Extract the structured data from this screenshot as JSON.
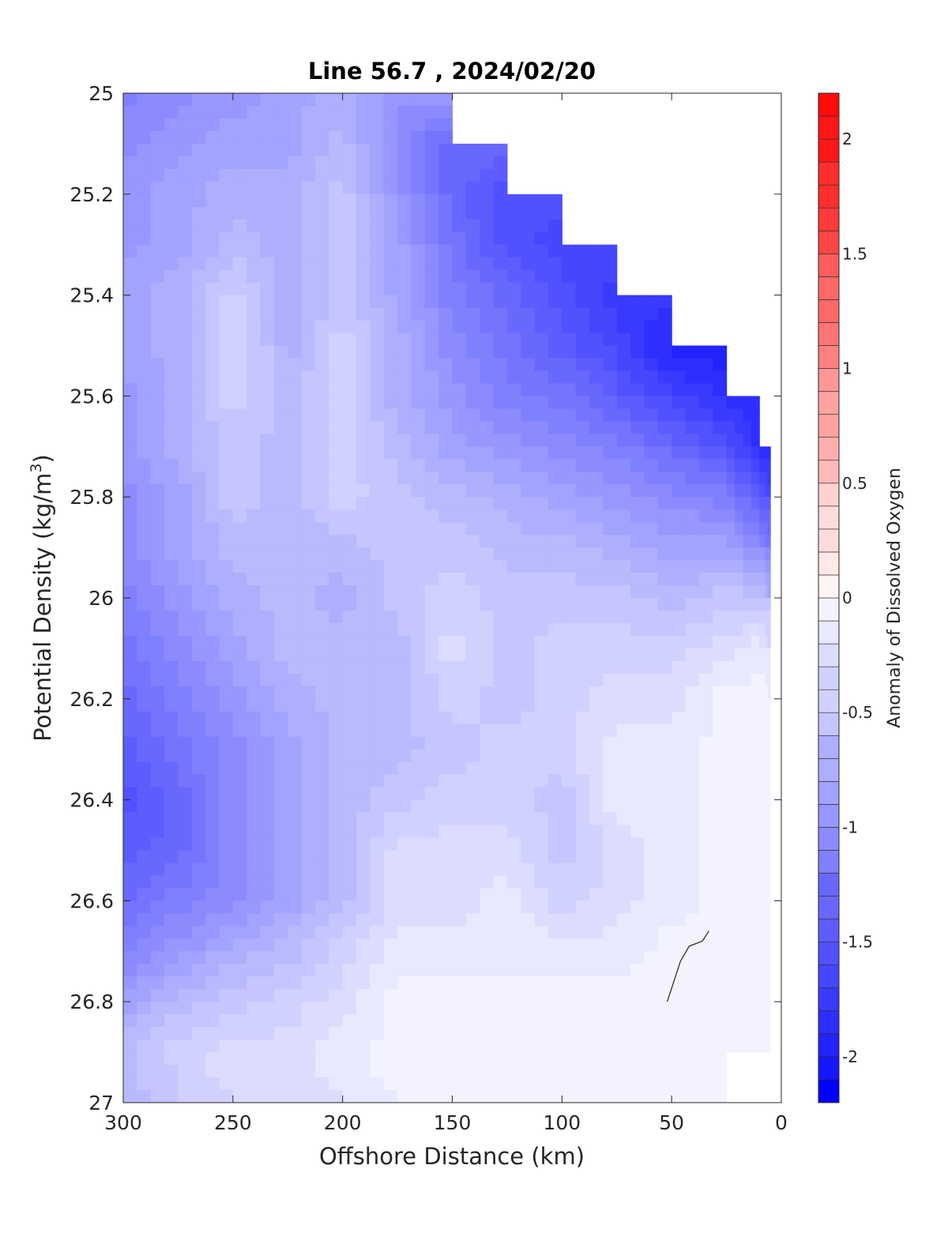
{
  "chart_data": {
    "type": "heatmap",
    "title": "Line 56.7 , 2024/02/20",
    "xlabel": "Offshore Distance (km)",
    "ylabel_parts": [
      "Potential Density (kg/m",
      "3",
      ")"
    ],
    "x_ticks": [
      300,
      250,
      200,
      150,
      100,
      50,
      0
    ],
    "x_tick_labels": [
      "300",
      "250",
      "200",
      "150",
      "100",
      "50",
      "0"
    ],
    "xlim": [
      300,
      0
    ],
    "y_ticks": [
      25,
      25.2,
      25.4,
      25.6,
      25.8,
      26,
      26.2,
      26.4,
      26.6,
      26.8,
      27
    ],
    "y_tick_labels": [
      "25",
      "25.2",
      "25.4",
      "25.6",
      "25.8",
      "26",
      "26.2",
      "26.4",
      "26.6",
      "26.8",
      "27"
    ],
    "ylim": [
      25,
      27
    ],
    "y_reversed": true,
    "colorbar": {
      "label": "Anomaly of Dissolved Oxygen",
      "range": [
        -2.2,
        2.2
      ],
      "step": 0.1,
      "ticks": [
        -2,
        -1.5,
        -1,
        -0.5,
        0,
        0.5,
        1,
        1.5,
        2
      ],
      "tick_labels": [
        "-2",
        "-1.5",
        "-1",
        "-0.5",
        "0",
        "0.5",
        "1",
        "1.5",
        "2"
      ],
      "negative_color": "#0000ff",
      "positive_color": "#ff0000",
      "neutral_color": "#ffffff"
    },
    "grid_x": [
      300,
      275,
      250,
      225,
      200,
      175,
      150,
      125,
      100,
      75,
      50,
      25,
      10
    ],
    "grid_y": [
      25.0,
      25.1,
      25.2,
      25.3,
      25.4,
      25.5,
      25.6,
      25.7,
      25.8,
      25.9,
      26.0,
      26.1,
      26.2,
      26.3,
      26.4,
      26.5,
      26.6,
      26.7,
      26.8,
      26.9
    ],
    "values": [
      [
        -1.1,
        -1.0,
        -0.9,
        -0.8,
        -0.7,
        -0.9,
        null,
        null,
        null,
        null,
        null,
        null,
        null
      ],
      [
        -1.0,
        -0.9,
        -0.8,
        -0.8,
        -0.6,
        -1.0,
        -1.3,
        null,
        null,
        null,
        null,
        null,
        null
      ],
      [
        -0.9,
        -0.8,
        -0.7,
        -0.7,
        -0.5,
        -0.9,
        -1.3,
        -1.5,
        null,
        null,
        null,
        null,
        null
      ],
      [
        -0.9,
        -0.8,
        -0.6,
        -0.7,
        -0.5,
        -0.8,
        -1.2,
        -1.5,
        -1.6,
        null,
        null,
        null,
        null
      ],
      [
        -0.8,
        -0.7,
        -0.4,
        -0.7,
        -0.5,
        -0.8,
        -1.1,
        -1.3,
        -1.5,
        -1.7,
        null,
        null,
        null
      ],
      [
        -0.8,
        -0.7,
        -0.3,
        -0.7,
        -0.4,
        -0.7,
        -1.0,
        -1.2,
        -1.4,
        -1.6,
        -1.9,
        null,
        null
      ],
      [
        -0.9,
        -0.7,
        -0.4,
        -0.6,
        -0.4,
        -0.7,
        -0.9,
        -1.1,
        -1.2,
        -1.4,
        -1.6,
        -1.8,
        null
      ],
      [
        -0.9,
        -0.7,
        -0.5,
        -0.6,
        -0.4,
        -0.6,
        -0.8,
        -0.9,
        -1.0,
        -1.1,
        -1.3,
        -1.5,
        -1.8
      ],
      [
        -1.0,
        -0.8,
        -0.5,
        -0.6,
        -0.4,
        -0.5,
        -0.6,
        -0.7,
        -0.8,
        -0.9,
        -1.0,
        -1.1,
        -1.4
      ],
      [
        -1.0,
        -0.8,
        -0.6,
        -0.6,
        -0.6,
        -0.5,
        -0.5,
        -0.6,
        -0.6,
        -0.7,
        -0.8,
        -0.8,
        -1.0
      ],
      [
        -1.1,
        -0.9,
        -0.7,
        -0.6,
        -0.7,
        -0.5,
        -0.4,
        -0.5,
        -0.5,
        -0.5,
        -0.6,
        -0.5,
        -0.5
      ],
      [
        -1.2,
        -1.0,
        -0.8,
        -0.6,
        -0.6,
        -0.6,
        -0.3,
        -0.5,
        -0.4,
        -0.4,
        -0.4,
        -0.3,
        -0.2
      ],
      [
        -1.3,
        -1.1,
        -0.9,
        -0.7,
        -0.6,
        -0.6,
        -0.4,
        -0.5,
        -0.4,
        -0.3,
        -0.3,
        -0.1,
        -0.1
      ],
      [
        -1.4,
        -1.2,
        -1.0,
        -0.8,
        -0.6,
        -0.6,
        -0.5,
        -0.4,
        -0.4,
        -0.2,
        -0.2,
        -0.1,
        -0.1
      ],
      [
        -1.5,
        -1.3,
        -1.0,
        -0.8,
        -0.6,
        -0.5,
        -0.4,
        -0.4,
        -0.5,
        -0.2,
        -0.2,
        -0.1,
        -0.1
      ],
      [
        -1.4,
        -1.3,
        -1.0,
        -0.8,
        -0.6,
        -0.3,
        -0.3,
        -0.3,
        -0.5,
        -0.3,
        -0.2,
        -0.1,
        -0.1
      ],
      [
        -1.3,
        -1.1,
        -1.0,
        -0.8,
        -0.6,
        -0.3,
        -0.3,
        -0.2,
        -0.4,
        -0.3,
        -0.2,
        -0.1,
        -0.1
      ],
      [
        -1.1,
        -0.9,
        -0.7,
        -0.6,
        -0.4,
        -0.2,
        -0.2,
        -0.2,
        -0.2,
        -0.2,
        -0.1,
        -0.1,
        -0.1
      ],
      [
        -0.8,
        -0.6,
        -0.5,
        -0.4,
        -0.3,
        -0.1,
        -0.1,
        -0.1,
        -0.1,
        -0.1,
        -0.1,
        -0.1,
        -0.1
      ],
      [
        -0.6,
        -0.4,
        -0.3,
        -0.3,
        -0.2,
        -0.1,
        -0.1,
        -0.1,
        -0.1,
        -0.1,
        -0.1,
        null,
        null
      ]
    ],
    "zero_contour": [
      [
        52,
        26.8
      ],
      [
        46,
        26.72
      ],
      [
        42,
        26.69
      ],
      [
        36,
        26.68
      ],
      [
        33,
        26.66
      ]
    ]
  }
}
